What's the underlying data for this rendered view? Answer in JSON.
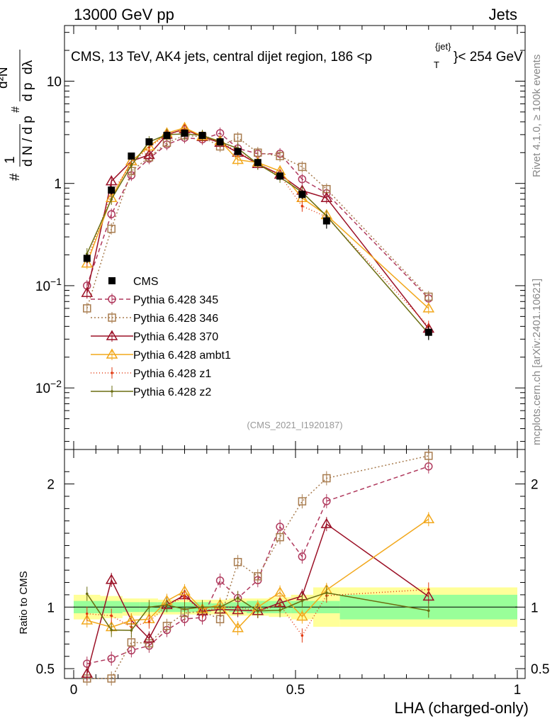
{
  "header": {
    "left": "13000 GeV pp",
    "right": "Jets",
    "rivet": "Rivet 4.1.0, ≥ 100k events",
    "mcplots": "mcplots.cern.ch [arXiv:2401.10621]",
    "watermark": "(CMS_2021_I1920187)"
  },
  "chart_data": {
    "type": "line",
    "title": "CMS, 13 TeV, AK4 jets, central dijet region, 186 <p_T^{jet}< 254 GeV",
    "xlabel": "LHA (charged-only)",
    "ylabel": "1/dN/dp_T  d²N/(dp_T dλ)",
    "ratio_ylabel": "Ratio to CMS",
    "xlim": [
      0,
      1
    ],
    "ylim": [
      0.0025,
      35
    ],
    "ratio_ylim": [
      0.42,
      2.28
    ],
    "xticks": [
      {
        "v": 0,
        "label": "0"
      },
      {
        "v": 0.5,
        "label": "0.5"
      },
      {
        "v": 1,
        "label": "1"
      }
    ],
    "yticks": [
      {
        "v": 0.01,
        "base": "10",
        "exp": "−2"
      },
      {
        "v": 0.1,
        "base": "10",
        "exp": "−1"
      },
      {
        "v": 1,
        "base": "1",
        "exp": ""
      },
      {
        "v": 10,
        "base": "10",
        "exp": ""
      }
    ],
    "ratio_yticks": [
      {
        "v": 0.5,
        "label": "0.5"
      },
      {
        "v": 1,
        "label": "1"
      },
      {
        "v": 2,
        "label": "2"
      }
    ],
    "bin_edges": [
      0,
      0.06,
      0.11,
      0.15,
      0.19,
      0.23,
      0.27,
      0.31,
      0.35,
      0.39,
      0.44,
      0.49,
      0.54,
      0.6,
      1.0
    ],
    "x": [
      0.03,
      0.085,
      0.13,
      0.17,
      0.21,
      0.25,
      0.29,
      0.33,
      0.37,
      0.415,
      0.465,
      0.515,
      0.57,
      0.8
    ],
    "data": {
      "name": "CMS",
      "values": [
        0.185,
        0.86,
        1.85,
        2.55,
        2.95,
        3.1,
        2.95,
        2.55,
        2.05,
        1.6,
        1.18,
        0.78,
        0.43,
        0.035
      ],
      "err_inner": [
        0.05,
        0.05,
        0.04,
        0.04,
        0.04,
        0.04,
        0.04,
        0.03,
        0.04,
        0.05,
        0.05,
        0.05,
        0.05,
        0.1
      ],
      "err_outer": [
        0.1,
        0.09,
        0.07,
        0.07,
        0.06,
        0.06,
        0.06,
        0.06,
        0.07,
        0.07,
        0.08,
        0.1,
        0.16,
        0.16
      ]
    },
    "series": [
      {
        "name": "Pythia 6.428 345",
        "color": "#b03a5e",
        "dash": "6,4",
        "marker": "circle",
        "values": [
          0.1,
          0.5,
          1.2,
          1.75,
          2.4,
          2.8,
          2.7,
          3.1,
          2.2,
          1.95,
          1.95,
          1.1,
          0.8,
          0.075
        ]
      },
      {
        "name": "Pythia 6.428 346",
        "color": "#a87c4f",
        "dash": "2,3",
        "marker": "square",
        "values": [
          0.06,
          0.36,
          1.32,
          1.8,
          2.5,
          2.95,
          2.85,
          2.3,
          2.8,
          2.0,
          1.85,
          1.45,
          0.88,
          0.078
        ]
      },
      {
        "name": "Pythia 6.428 370",
        "color": "#9b1026",
        "dash": "",
        "marker": "triangle",
        "values": [
          0.085,
          1.05,
          1.65,
          1.9,
          3.0,
          3.4,
          2.85,
          2.5,
          2.0,
          1.55,
          1.22,
          0.85,
          0.72,
          0.038
        ]
      },
      {
        "name": "Pythia 6.428 ambt1",
        "color": "#f2a81c",
        "dash": "",
        "marker": "triangle",
        "values": [
          0.165,
          0.72,
          1.65,
          2.3,
          3.1,
          3.5,
          2.9,
          2.6,
          1.7,
          1.6,
          1.32,
          0.72,
          0.49,
          0.06
        ]
      },
      {
        "name": "Pythia 6.428 z1",
        "color": "#e23a12",
        "dash": "1,3",
        "marker": "dot",
        "values": [
          0.175,
          0.8,
          1.55,
          2.25,
          3.0,
          3.35,
          2.85,
          2.55,
          2.05,
          1.55,
          1.2,
          0.6,
          0.47,
          0.04
        ]
      },
      {
        "name": "Pythia 6.428 z2",
        "color": "#6b6e12",
        "dash": "",
        "marker": "dot",
        "values": [
          0.205,
          0.7,
          1.5,
          2.55,
          3.0,
          3.05,
          2.95,
          2.55,
          2.2,
          1.55,
          1.15,
          0.82,
          0.48,
          0.034
        ]
      }
    ]
  }
}
